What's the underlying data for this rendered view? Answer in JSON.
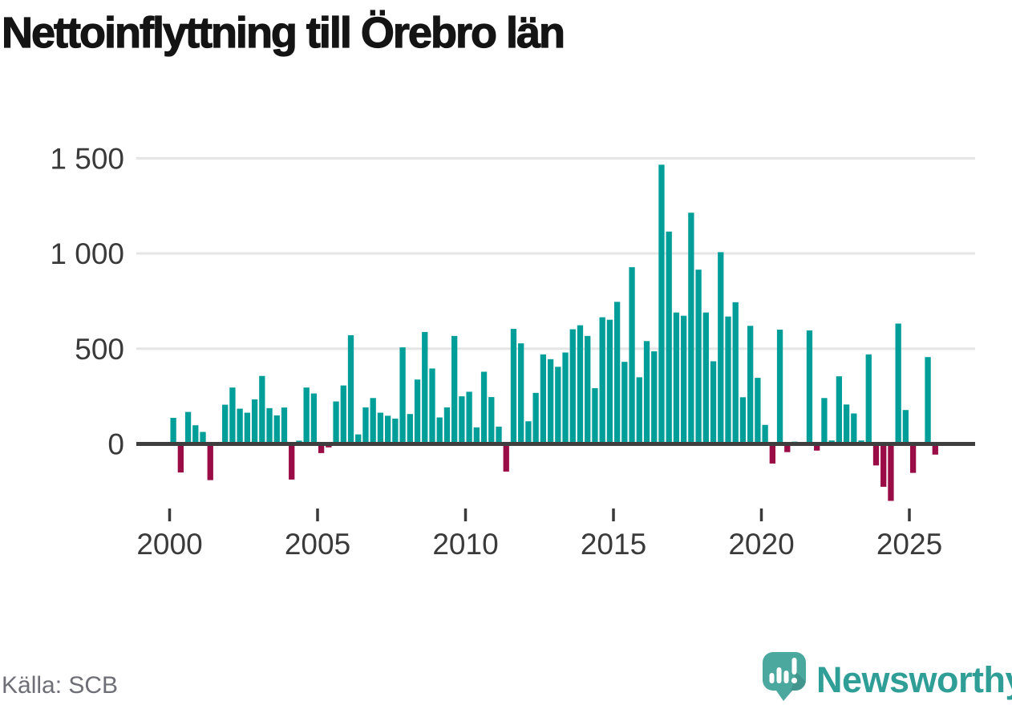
{
  "title": "Nettoinflyttning till Örebro län",
  "source": "Källa: SCB",
  "branding": {
    "logo_text": "Newsworthy",
    "logo_icon": "newsworthy-speech-bubble-chart-icon"
  },
  "colors": {
    "positive_bar": "#009E99",
    "negative_bar": "#9A0C46",
    "gridline": "#E5E5E5",
    "zero_line": "#3E3E3E",
    "axis_text": "#3A3A3A",
    "title_text": "#141414",
    "source_text": "#6E6E77",
    "logo_icon_fill": "#4BA89F",
    "logo_text_fill": "#2F9E97"
  },
  "chart_data": {
    "type": "bar",
    "title": "Nettoinflyttning till Örebro län",
    "xlabel": "",
    "ylabel": "",
    "x_unit": "quarter",
    "start_year": 2000,
    "periods_per_year": 4,
    "end_period": "2025-Q4",
    "grid": true,
    "legend": false,
    "y_axis": {
      "ticks": [
        0,
        500,
        1000,
        1500
      ],
      "tick_labels": [
        "0",
        "500",
        "1 000",
        "1 500"
      ],
      "range": [
        -320,
        1560
      ]
    },
    "x_axis": {
      "tick_years": [
        "2000",
        "2005",
        "2010",
        "2015",
        "2020",
        "2025"
      ]
    },
    "series": [
      {
        "name": "Nettoinflyttning",
        "values": [
          137,
          -150,
          168,
          98,
          63,
          -190,
          0,
          206,
          296,
          185,
          164,
          234,
          357,
          188,
          150,
          191,
          -187,
          17,
          296,
          265,
          -48,
          -18,
          223,
          307,
          571,
          50,
          192,
          241,
          164,
          148,
          133,
          507,
          157,
          338,
          588,
          396,
          139,
          192,
          567,
          250,
          274,
          87,
          379,
          246,
          91,
          -145,
          604,
          528,
          119,
          268,
          470,
          445,
          405,
          480,
          602,
          623,
          567,
          293,
          665,
          652,
          746,
          431,
          928,
          350,
          540,
          486,
          1466,
          1115,
          690,
          673,
          1214,
          915,
          690,
          434,
          1007,
          669,
          744,
          245,
          620,
          347,
          100,
          -103,
          600,
          -43,
          12,
          0,
          596,
          -35,
          241,
          18,
          355,
          207,
          160,
          18,
          470,
          -113,
          -225,
          -299,
          632,
          178,
          -152,
          0,
          456,
          -56
        ]
      }
    ]
  }
}
